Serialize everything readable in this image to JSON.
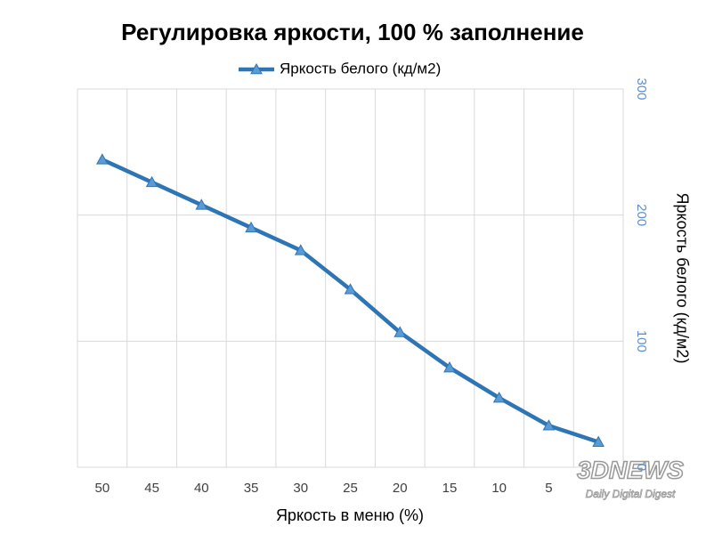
{
  "chart_data": {
    "type": "line",
    "title": "Регулировка яркости, 100 % заполнение",
    "x_label": "Яркость в меню (%)",
    "y_label": "Яркость белого (кд/м2)",
    "categories": [
      "50",
      "45",
      "40",
      "35",
      "30",
      "25",
      "20",
      "15",
      "10",
      "5",
      null
    ],
    "series": [
      {
        "name": "Яркость белого (кд/м2)",
        "color": "#2e75b6",
        "marker_color": "#5b9bd5",
        "values": [
          244,
          226,
          208,
          190,
          172,
          141,
          107,
          79,
          55,
          33,
          20
        ]
      }
    ],
    "ylim": [
      0,
      300
    ],
    "yticks": [
      0,
      100,
      200,
      300
    ],
    "y_axis_side": "right",
    "ytick_color": "#5b8fd0",
    "grid": true,
    "legend": "top"
  },
  "watermark": {
    "logo": "3DNEWS",
    "tagline": "Daily Digital Digest"
  }
}
